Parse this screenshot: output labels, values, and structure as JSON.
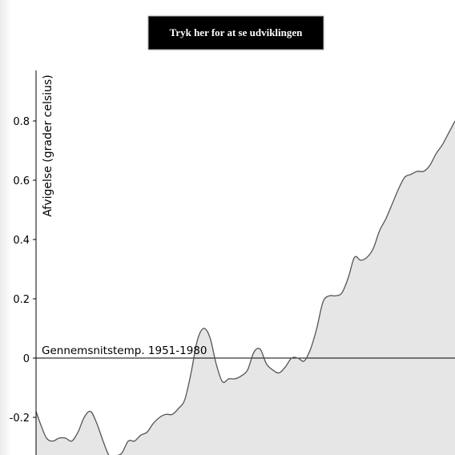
{
  "button": {
    "label": "Tryk her for at se udviklingen"
  },
  "chart_data": {
    "type": "area",
    "title": "",
    "xlabel": "",
    "ylabel": "Afvigelse (grader celsius)",
    "ylim": [
      -0.33,
      0.97
    ],
    "xlim": [
      0,
      100
    ],
    "yticks": [
      {
        "value": 0.8,
        "label": "0.8"
      },
      {
        "value": 0.6,
        "label": "0.6"
      },
      {
        "value": 0.4,
        "label": "0.4"
      },
      {
        "value": 0.2,
        "label": "0.2"
      },
      {
        "value": 0,
        "label": "0"
      },
      {
        "value": -0.2,
        "label": "-0.2"
      }
    ],
    "reference_line": {
      "value": 0,
      "label": "Gennemsnitstemp. 1951-1980"
    },
    "colors": {
      "fill": "#e6e6e6",
      "line": "#555555",
      "axis": "#000000"
    },
    "series": [
      {
        "x": [
          0,
          1,
          2.5,
          4,
          5.5,
          7,
          8.5,
          10,
          11.5,
          13,
          14.5,
          16,
          17.5,
          19,
          20.5,
          22,
          23.5,
          25,
          26.5,
          28,
          29.5,
          31,
          32.5,
          34,
          35.5,
          37,
          38.5,
          40,
          41.5,
          43,
          44.5,
          46,
          47.5,
          49,
          50.5,
          52,
          53.5,
          55,
          56.5,
          58,
          59.5,
          61,
          62.5,
          64,
          65.5,
          67,
          68.5,
          70,
          71.5,
          73,
          74.5,
          76,
          77.5,
          79,
          80.5,
          82,
          83.5,
          85,
          86.5,
          88,
          89.5,
          91,
          92.5,
          94,
          95.5,
          97,
          98.5,
          100
        ],
        "y": [
          -0.18,
          -0.22,
          -0.27,
          -0.28,
          -0.27,
          -0.27,
          -0.28,
          -0.25,
          -0.2,
          -0.18,
          -0.22,
          -0.28,
          -0.33,
          -0.33,
          -0.32,
          -0.28,
          -0.28,
          -0.26,
          -0.25,
          -0.22,
          -0.2,
          -0.19,
          -0.19,
          -0.17,
          -0.14,
          -0.05,
          0.06,
          0.1,
          0.07,
          -0.02,
          -0.08,
          -0.07,
          -0.07,
          -0.06,
          -0.04,
          0.02,
          0.03,
          -0.02,
          -0.04,
          -0.05,
          -0.03,
          0.0,
          0.0,
          -0.01,
          0.03,
          0.1,
          0.19,
          0.21,
          0.21,
          0.22,
          0.27,
          0.34,
          0.33,
          0.34,
          0.37,
          0.43,
          0.47,
          0.52,
          0.57,
          0.61,
          0.62,
          0.63,
          0.63,
          0.65,
          0.69,
          0.72,
          0.76,
          0.8
        ]
      }
    ]
  }
}
